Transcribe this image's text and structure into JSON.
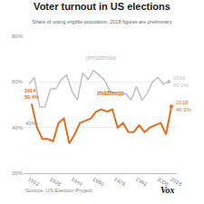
{
  "chart_data": {
    "type": "line",
    "title": "Voter turnout in US elections",
    "subtitle": "Share of voting eligible population. 2018 figures are preliminary",
    "source": "Source: US Election Project",
    "logo": "Vox",
    "series": [
      {
        "name": "presidential",
        "color": "#c0c0c0",
        "x": [
          1912,
          1916,
          1920,
          1924,
          1928,
          1932,
          1936,
          1940,
          1944,
          1948,
          1952,
          1956,
          1960,
          1964,
          1968,
          1972,
          1976,
          1980,
          1984,
          1988,
          1992,
          1996,
          2000,
          2004,
          2008,
          2012,
          2016
        ],
        "values": [
          59,
          62,
          49,
          49,
          57,
          57,
          61,
          63,
          56,
          52,
          64,
          61,
          65,
          63,
          61,
          56,
          55,
          54,
          55,
          52,
          58,
          52,
          55,
          60,
          62,
          59,
          60.1
        ]
      },
      {
        "name": "midterm",
        "color": "#e07020",
        "x": [
          1914,
          1918,
          1922,
          1926,
          1930,
          1934,
          1938,
          1942,
          1946,
          1950,
          1954,
          1958,
          1962,
          1966,
          1970,
          1974,
          1978,
          1982,
          1986,
          1990,
          1994,
          1998,
          2002,
          2006,
          2010,
          2014,
          2018
        ],
        "values": [
          50.4,
          40,
          35,
          35,
          34,
          42,
          44,
          33,
          37,
          42,
          43,
          44,
          47,
          48,
          47,
          48,
          40,
          42,
          38,
          38,
          41,
          38,
          40,
          41,
          42,
          37,
          49.3
        ]
      }
    ],
    "annotations": [
      {
        "text": "1914\n50.4%",
        "x": 1914,
        "y": 50.4,
        "color": "#e07020"
      },
      {
        "text": "2016\n60.1%",
        "x": 2016,
        "y": 60.1,
        "color": "#c0c0c0"
      },
      {
        "text": "2018\n49.3%",
        "x": 2018,
        "y": 49.3,
        "color": "#e07020"
      },
      {
        "text": "40%",
        "y": 40
      }
    ],
    "xlim": [
      1908,
      2022
    ],
    "xticks": [
      1912,
      1928,
      1944,
      1960,
      1976,
      1992,
      2008,
      2018
    ],
    "ylim": [
      20,
      80
    ],
    "yticks": [
      {
        "value": 20,
        "label": "20%"
      },
      {
        "value": 40,
        "label": "40%"
      },
      {
        "value": 60,
        "label": "60%"
      },
      {
        "value": 80,
        "label": "80%"
      }
    ],
    "grid": true
  }
}
